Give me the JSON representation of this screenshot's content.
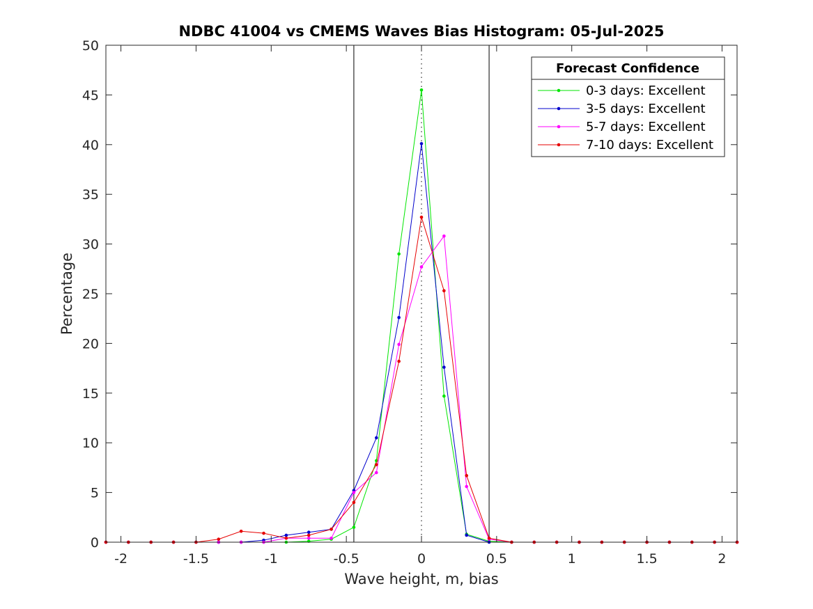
{
  "chart_data": {
    "type": "line",
    "title": "NDBC 41004 vs CMEMS Waves Bias Histogram: 05-Jul-2025",
    "xlabel": "Wave height, m, bias",
    "ylabel": "Percentage",
    "xlim": [
      -2.1,
      2.1
    ],
    "ylim": [
      0,
      50
    ],
    "xticks": [
      -2,
      -1.5,
      -1,
      -0.5,
      0,
      0.5,
      1,
      1.5,
      2
    ],
    "xtick_labels": [
      "-2",
      "-1.5",
      "-1",
      "-0.5",
      "0",
      "0.5",
      "1",
      "1.5",
      "2"
    ],
    "yticks": [
      0,
      5,
      10,
      15,
      20,
      25,
      30,
      35,
      40,
      45,
      50
    ],
    "ytick_labels": [
      "0",
      "5",
      "10",
      "15",
      "20",
      "25",
      "30",
      "35",
      "40",
      "45",
      "50"
    ],
    "vertical_lines": [
      {
        "x": -0.45,
        "style": "solid",
        "color": "#000000"
      },
      {
        "x": 0,
        "style": "dotted",
        "color": "#000000"
      },
      {
        "x": 0.45,
        "style": "solid",
        "color": "#000000"
      }
    ],
    "legend": {
      "title": "Forecast Confidence",
      "position": "top-right"
    },
    "x": [
      -2.1,
      -1.95,
      -1.8,
      -1.65,
      -1.5,
      -1.35,
      -1.2,
      -1.05,
      -0.9,
      -0.75,
      -0.6,
      -0.45,
      -0.3,
      -0.15,
      0,
      0.15,
      0.3,
      0.45,
      0.6,
      0.75,
      0.9,
      1.05,
      1.2,
      1.35,
      1.5,
      1.65,
      1.8,
      1.95,
      2.1
    ],
    "series": [
      {
        "name": "0-3 days: Excellent",
        "color": "#00e600",
        "values": [
          0,
          0,
          0,
          0,
          0,
          0,
          0,
          0,
          0,
          0.1,
          0.3,
          1.5,
          8.2,
          29.0,
          45.5,
          14.7,
          0.8,
          0.1,
          0,
          0,
          0,
          0,
          0,
          0,
          0,
          0,
          0,
          0,
          0
        ]
      },
      {
        "name": "3-5 days: Excellent",
        "color": "#0000cc",
        "values": [
          0,
          0,
          0,
          0,
          0,
          0,
          0,
          0.2,
          0.7,
          1.0,
          1.3,
          5.2,
          10.5,
          22.6,
          40.1,
          17.6,
          0.7,
          0,
          0,
          0,
          0,
          0,
          0,
          0,
          0,
          0,
          0,
          0,
          0
        ]
      },
      {
        "name": "5-7 days: Excellent",
        "color": "#ff00ff",
        "values": [
          0,
          0,
          0,
          0,
          0,
          0,
          0,
          0,
          0.4,
          0.4,
          0.4,
          5.0,
          7.0,
          19.9,
          27.7,
          30.8,
          5.6,
          0.3,
          0,
          0,
          0,
          0,
          0,
          0,
          0,
          0,
          0,
          0,
          0
        ]
      },
      {
        "name": "7-10 days: Excellent",
        "color": "#e60000",
        "values": [
          0,
          0,
          0,
          0,
          0,
          0.3,
          1.1,
          0.9,
          0.4,
          0.7,
          1.3,
          4.0,
          7.8,
          18.2,
          32.7,
          25.3,
          6.7,
          0.4,
          0,
          0,
          0,
          0,
          0,
          0,
          0,
          0,
          0,
          0,
          0
        ]
      }
    ]
  }
}
